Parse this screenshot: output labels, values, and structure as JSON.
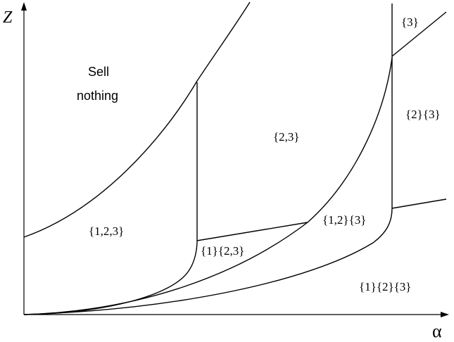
{
  "axes": {
    "y_label": "Z",
    "x_label": "α"
  },
  "regions": {
    "sell_nothing_line1": "Sell",
    "sell_nothing_line2": "nothing",
    "r_123": "{1,2,3}",
    "r_1_23": "{1}{2,3}",
    "r_23": "{2,3}",
    "r_12_3": "{1,2}{3}",
    "r_2_3": "{2}{3}",
    "r_3": "{3}",
    "r_1_2_3": "{1}{2}{3}"
  }
}
